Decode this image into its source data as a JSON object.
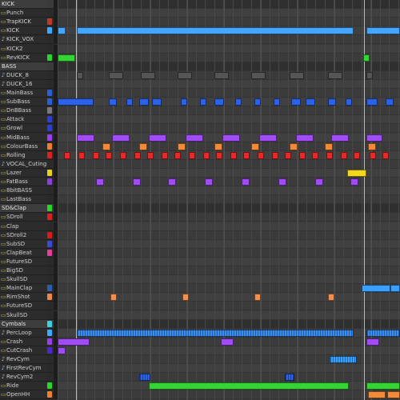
{
  "tracks": [
    {
      "label": "KICK",
      "type": "group",
      "color": "#3a3a3a"
    },
    {
      "label": "Punch",
      "type": "audio",
      "color": "#2a2a2a"
    },
    {
      "label": "TrapKICK",
      "type": "audio",
      "color": "#c0392b"
    },
    {
      "label": "KICK",
      "type": "audio",
      "color": "#3da9ff"
    },
    {
      "label": "KICK_VOX",
      "type": "plugin",
      "color": "#2a2a2a"
    },
    {
      "label": "KICK2",
      "type": "audio",
      "color": "#2a2a2a"
    },
    {
      "label": "RevKICK",
      "type": "audio",
      "color": "#2bd62b"
    },
    {
      "label": "BASS",
      "type": "group",
      "color": "#3a3a3a"
    },
    {
      "label": "DUCK_8",
      "type": "plugin",
      "color": "#2a2a2a"
    },
    {
      "label": "DUCK_16",
      "type": "plugin",
      "color": "#2a2a2a"
    },
    {
      "label": "MainBass",
      "type": "audio",
      "color": "#2b5fd6"
    },
    {
      "label": "SubBass",
      "type": "audio",
      "color": "#2b5fd6"
    },
    {
      "label": "DnBBass",
      "type": "audio",
      "color": "#7a7a7a"
    },
    {
      "label": "Attack",
      "type": "audio",
      "color": "#2b3fd6"
    },
    {
      "label": "Growl",
      "type": "audio",
      "color": "#2b3fd6"
    },
    {
      "label": "MidBass",
      "type": "audio",
      "color": "#9b3ef0"
    },
    {
      "label": "ColourBass",
      "type": "audio",
      "color": "#f08030"
    },
    {
      "label": "Rolling",
      "type": "audio",
      "color": "#e02020"
    },
    {
      "label": "VOCAL_Cuting",
      "type": "plugin",
      "color": "#2a2a2a"
    },
    {
      "label": "Lazer",
      "type": "audio",
      "color": "#e6d21e"
    },
    {
      "label": "FatBass",
      "type": "audio",
      "color": "#8b3fe0"
    },
    {
      "label": "8bitBASS",
      "type": "audio",
      "color": "#2a2a2a"
    },
    {
      "label": "LastBass",
      "type": "audio",
      "color": "#2a2a2a"
    },
    {
      "label": "SD&Clap",
      "type": "group",
      "color": "#3a3a3a"
    },
    {
      "label": "SDroll",
      "type": "audio",
      "color": "#e02020"
    },
    {
      "label": "Clap",
      "type": "audio",
      "color": "#2a2a2a"
    },
    {
      "label": "SDroll2",
      "type": "audio",
      "color": "#d81a1a"
    },
    {
      "label": "SubSD",
      "type": "audio",
      "color": "#3a4ad6"
    },
    {
      "label": "ClapBeat",
      "type": "audio",
      "color": "#e0409a"
    },
    {
      "label": "FutureSD",
      "type": "audio",
      "color": "#2a2a2a"
    },
    {
      "label": "BigSD",
      "type": "audio",
      "color": "#2a2a2a"
    },
    {
      "label": "SkullSD",
      "type": "audio",
      "color": "#2a2a2a"
    },
    {
      "label": "MainClap",
      "type": "audio",
      "color": "#2a5fb0"
    },
    {
      "label": "RimShot",
      "type": "audio",
      "color": "#f0874a"
    },
    {
      "label": "FutureSD",
      "type": "audio",
      "color": "#2a2a2a"
    },
    {
      "label": "SkullSD",
      "type": "audio",
      "color": "#2a2a2a"
    },
    {
      "label": "Cymbals",
      "type": "group",
      "color": "#3a3a3a"
    },
    {
      "label": "PercLoop",
      "type": "plugin",
      "color": "#3da9ff"
    },
    {
      "label": "Crash",
      "type": "audio",
      "color": "#9b3ef0"
    },
    {
      "label": "CutCrash",
      "type": "audio",
      "color": "#4a2ad0"
    },
    {
      "label": "RevCym",
      "type": "plugin",
      "color": "#2a2a2a"
    },
    {
      "label": "FirstRevCym",
      "type": "plugin",
      "color": "#2a2a2a"
    },
    {
      "label": "RevCym2",
      "type": "plugin",
      "color": "#2a2a2a"
    },
    {
      "label": "Ride",
      "type": "audio",
      "color": "#2bd62b"
    },
    {
      "label": "OpenHH",
      "type": "audio",
      "color": "#f08030"
    }
  ],
  "group_swatches": {
    "SD&Clap": "#2bd62b",
    "Cymbals": "#3ad0e0"
  },
  "colors": {
    "blue": "#44a6ff",
    "green": "#33d433",
    "mainbass": "#2b62e8",
    "purple": "#a04cf5",
    "orange": "#f28a3a",
    "red": "#e52a2a",
    "yellow": "#f2d71c",
    "gray": "#555555",
    "cyan": "#3aa0ff",
    "percloop": "#3a8cf0",
    "rimshot": "#f09050"
  }
}
